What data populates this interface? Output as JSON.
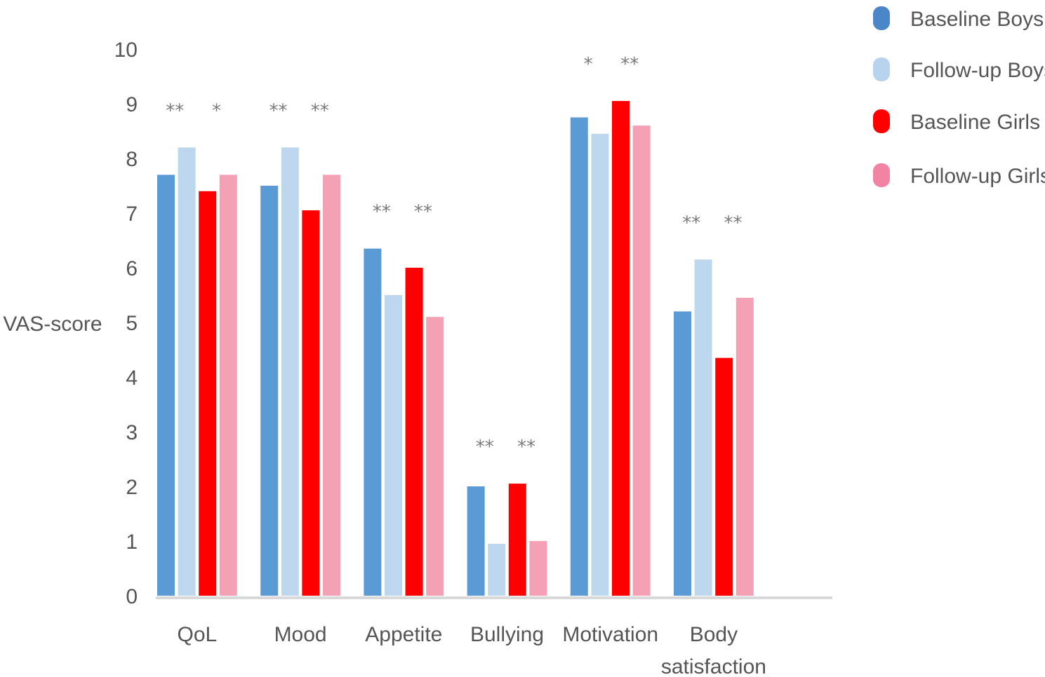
{
  "chart_data": {
    "type": "bar",
    "ylabel": "VAS-score",
    "xlabel": "",
    "ylim": [
      0,
      10
    ],
    "yticks": [
      0,
      1,
      2,
      3,
      4,
      5,
      6,
      7,
      8,
      9,
      10
    ],
    "grid": false,
    "legend_position": "top-right",
    "categories": [
      "QoL",
      "Mood",
      "Appetite",
      "Bullying",
      "Motivation",
      "Body satisfaction"
    ],
    "category_lines": [
      [
        "QoL"
      ],
      [
        "Mood"
      ],
      [
        "Appetite"
      ],
      [
        "Bullying"
      ],
      [
        "Motivation"
      ],
      [
        "Body",
        "satisfaction"
      ]
    ],
    "series": [
      {
        "name": "Baseline Boys",
        "color": "#5b9bd5",
        "values": [
          7.7,
          7.5,
          6.35,
          2.0,
          8.75,
          5.2
        ]
      },
      {
        "name": "Follow-up Boys",
        "color": "#bdd7ee",
        "values": [
          8.2,
          8.2,
          5.5,
          0.95,
          8.45,
          6.15
        ]
      },
      {
        "name": "Baseline Girls",
        "color": "#ff0000",
        "values": [
          7.4,
          7.05,
          6.0,
          2.05,
          9.05,
          4.35
        ]
      },
      {
        "name": "Follow-up Girls",
        "color": "#f4a0b5",
        "values": [
          7.7,
          7.7,
          5.1,
          1.0,
          8.6,
          5.45
        ]
      }
    ],
    "legend_marker_colors": [
      "#4a86c8",
      "#b8d3ee",
      "#ff0000",
      "#f283a3"
    ],
    "annotations": [
      {
        "category": "QoL",
        "boys": "**",
        "girls": "*"
      },
      {
        "category": "Mood",
        "boys": "**",
        "girls": "**"
      },
      {
        "category": "Appetite",
        "boys": "**",
        "girls": "**"
      },
      {
        "category": "Bullying",
        "boys": "**",
        "girls": "**"
      },
      {
        "category": "Motivation",
        "boys": "*",
        "girls": "**"
      },
      {
        "category": "Body satisfaction",
        "boys": "**",
        "girls": "**"
      }
    ],
    "axis_color": "#d9d9d9"
  }
}
